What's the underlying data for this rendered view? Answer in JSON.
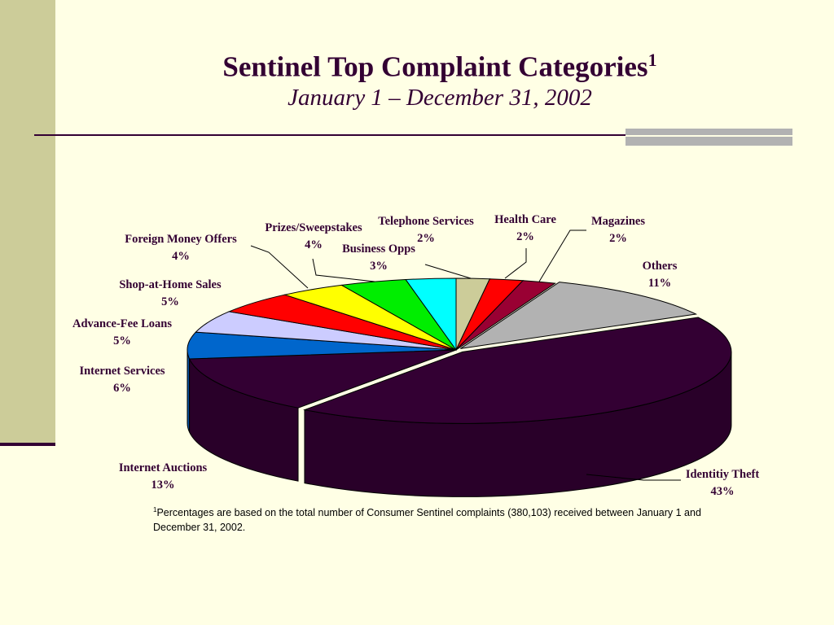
{
  "slide": {
    "title": "Sentinel Top Complaint Categories",
    "title_sup": "1",
    "subtitle": "January 1 – December 31, 2002",
    "footnote_sup": "1",
    "footnote": "Percentages are based on the total number of Consumer Sentinel complaints (380,103) received between January 1 and December 31, 2002."
  },
  "chart_data": {
    "type": "pie",
    "three_d": true,
    "categories": [
      "Telephone Services",
      "Health Care",
      "Magazines",
      "Others",
      "Identitiy Theft",
      "Internet Auctions",
      "Internet Services",
      "Advance-Fee Loans",
      "Shop-at-Home Sales",
      "Foreign Money Offers",
      "Prizes/Sweepstakes",
      "Business Opps"
    ],
    "values": [
      2,
      2,
      2,
      11,
      43,
      13,
      6,
      5,
      5,
      4,
      4,
      3
    ],
    "value_labels": [
      "2%",
      "2%",
      "2%",
      "11%",
      "43%",
      "13%",
      "6%",
      "5%",
      "5%",
      "4%",
      "4%",
      "3%"
    ],
    "colors": [
      "#CCCC99",
      "#FF0000",
      "#990033",
      "#B2B2B2",
      "#330033",
      "#330033",
      "#0066CC",
      "#CCCCFF",
      "#FF0000",
      "#FFFF00",
      "#00EE00",
      "#00FFFF"
    ],
    "exploded": [
      "Identitiy Theft",
      "Others"
    ]
  }
}
